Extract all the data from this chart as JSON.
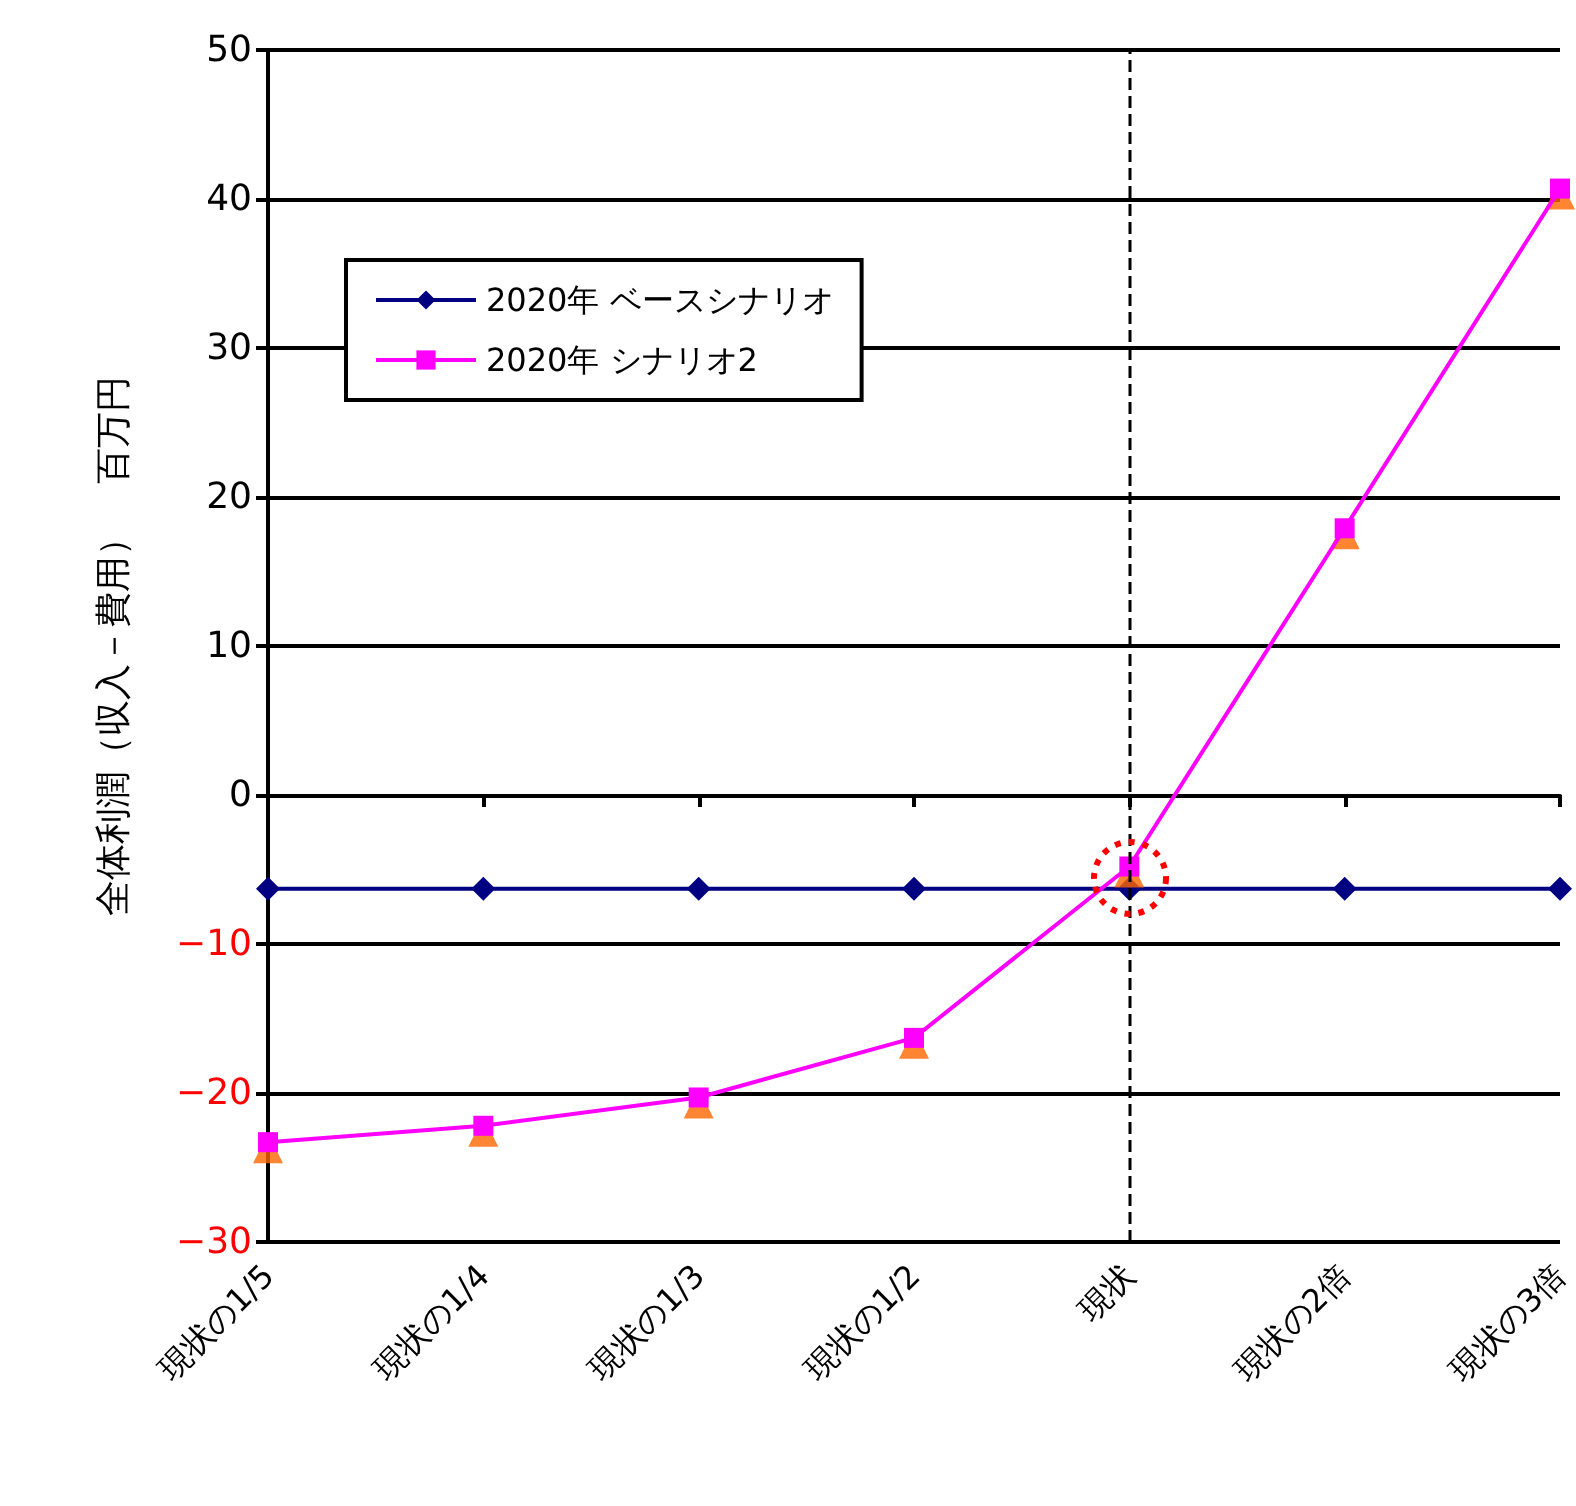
{
  "chart_data": {
    "type": "line",
    "ylabel": "全体利潤（収入－費用）　百万円",
    "categories": [
      "現状の1/5",
      "現状の1/4",
      "現状の1/3",
      "現状の1/2",
      "現状",
      "現状の2倍",
      "現状の3倍"
    ],
    "series": [
      {
        "name": "2020年 ベースシナリオ",
        "color": "#000080",
        "marker": "diamond",
        "values": [
          -6.3,
          -6.3,
          -6.3,
          -6.3,
          -6.3,
          -6.3,
          -6.3
        ]
      },
      {
        "type": "scatter",
        "color": "#ff6600",
        "marker": "triangle",
        "values": [
          -23.7,
          -22.6,
          -20.7,
          -16.7,
          -5.2,
          17.5,
          40.3
        ]
      },
      {
        "name": "2020年 シナリオ2",
        "color": "#ff00ff",
        "marker": "square",
        "values": [
          -23.3,
          -22.2,
          -20.3,
          -16.3,
          -4.8,
          17.9,
          40.7
        ]
      }
    ],
    "ylim": [
      -30,
      50
    ],
    "yticks": [
      {
        "value": -30,
        "label": "−30"
      },
      {
        "value": -20,
        "label": "−20"
      },
      {
        "value": -10,
        "label": "−10"
      },
      0,
      10,
      20,
      30,
      40,
      50
    ],
    "grid": "y",
    "legend": "top left",
    "line_style": "solid",
    "ref_lines": [
      {
        "axis": "x",
        "value": "現状",
        "color": "#000000",
        "line_style": "dashed"
      }
    ]
  }
}
